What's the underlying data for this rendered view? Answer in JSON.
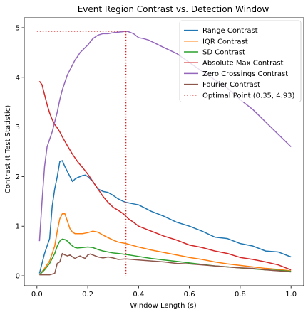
{
  "chart_data": {
    "type": "line",
    "title": "Event Region Contrast vs. Detection Window",
    "xlabel": "Window Length (s)",
    "ylabel": "Contrast (t Test Statistic)",
    "xlim": [
      -0.05,
      1.05
    ],
    "ylim": [
      -0.2,
      5.2
    ],
    "xticks": [
      0.0,
      0.2,
      0.4,
      0.6,
      0.8,
      1.0
    ],
    "xtick_labels": [
      "0.0",
      "0.2",
      "0.4",
      "0.6",
      "0.8",
      "1.0"
    ],
    "yticks": [
      0,
      1,
      2,
      3,
      4,
      5
    ],
    "ytick_labels": [
      "0",
      "1",
      "2",
      "3",
      "4",
      "5"
    ],
    "grid": false,
    "legend_position": "top-right",
    "series": [
      {
        "name": "Range Contrast",
        "color": "#1f77b4",
        "x": [
          0.01,
          0.02,
          0.03,
          0.04,
          0.05,
          0.06,
          0.07,
          0.08,
          0.09,
          0.1,
          0.11,
          0.12,
          0.13,
          0.14,
          0.15,
          0.16,
          0.17,
          0.18,
          0.19,
          0.2,
          0.22,
          0.24,
          0.26,
          0.28,
          0.3,
          0.32,
          0.34,
          0.35,
          0.36,
          0.38,
          0.4,
          0.45,
          0.5,
          0.55,
          0.6,
          0.65,
          0.7,
          0.75,
          0.8,
          0.85,
          0.9,
          0.95,
          1.0
        ],
        "y": [
          0.05,
          0.25,
          0.45,
          0.6,
          0.75,
          1.4,
          1.75,
          2.0,
          2.3,
          2.32,
          2.2,
          2.1,
          2.0,
          1.9,
          1.95,
          1.98,
          2.0,
          2.02,
          2.03,
          2.0,
          1.9,
          1.75,
          1.7,
          1.68,
          1.62,
          1.55,
          1.5,
          1.48,
          1.47,
          1.45,
          1.43,
          1.3,
          1.2,
          1.08,
          1.0,
          0.9,
          0.78,
          0.75,
          0.65,
          0.6,
          0.5,
          0.48,
          0.38
        ]
      },
      {
        "name": "IQR Contrast",
        "color": "#ff7f0e",
        "x": [
          0.01,
          0.03,
          0.05,
          0.07,
          0.08,
          0.09,
          0.1,
          0.11,
          0.12,
          0.13,
          0.14,
          0.15,
          0.16,
          0.18,
          0.2,
          0.22,
          0.24,
          0.26,
          0.28,
          0.3,
          0.32,
          0.35,
          0.4,
          0.45,
          0.5,
          0.55,
          0.6,
          0.65,
          0.7,
          0.75,
          0.8,
          0.85,
          0.9,
          0.95,
          1.0
        ],
        "y": [
          0.02,
          0.15,
          0.3,
          0.6,
          0.9,
          1.15,
          1.25,
          1.25,
          1.1,
          0.95,
          0.88,
          0.85,
          0.85,
          0.85,
          0.87,
          0.9,
          0.88,
          0.82,
          0.77,
          0.72,
          0.68,
          0.65,
          0.58,
          0.52,
          0.47,
          0.42,
          0.37,
          0.33,
          0.28,
          0.24,
          0.21,
          0.18,
          0.15,
          0.13,
          0.1
        ]
      },
      {
        "name": "SD Contrast",
        "color": "#2ca02c",
        "x": [
          0.01,
          0.03,
          0.05,
          0.07,
          0.08,
          0.09,
          0.1,
          0.11,
          0.12,
          0.13,
          0.14,
          0.15,
          0.16,
          0.18,
          0.2,
          0.22,
          0.24,
          0.26,
          0.28,
          0.3,
          0.32,
          0.35,
          0.4,
          0.45,
          0.5,
          0.55,
          0.6,
          0.65,
          0.7,
          0.75,
          0.8,
          0.85,
          0.9,
          0.95,
          1.0
        ],
        "y": [
          0.02,
          0.12,
          0.25,
          0.45,
          0.6,
          0.7,
          0.74,
          0.73,
          0.7,
          0.65,
          0.6,
          0.57,
          0.56,
          0.57,
          0.58,
          0.57,
          0.53,
          0.5,
          0.48,
          0.46,
          0.45,
          0.43,
          0.39,
          0.35,
          0.32,
          0.29,
          0.26,
          0.23,
          0.2,
          0.18,
          0.16,
          0.14,
          0.12,
          0.11,
          0.09
        ]
      },
      {
        "name": "Absolute Max Contrast",
        "color": "#d62728",
        "x": [
          0.01,
          0.02,
          0.03,
          0.04,
          0.05,
          0.06,
          0.07,
          0.08,
          0.09,
          0.1,
          0.12,
          0.14,
          0.16,
          0.18,
          0.2,
          0.22,
          0.24,
          0.26,
          0.28,
          0.3,
          0.32,
          0.34,
          0.35,
          0.36,
          0.38,
          0.4,
          0.45,
          0.5,
          0.55,
          0.6,
          0.65,
          0.7,
          0.75,
          0.8,
          0.85,
          0.9,
          0.95,
          1.0
        ],
        "y": [
          3.92,
          3.85,
          3.65,
          3.45,
          3.28,
          3.15,
          3.05,
          2.98,
          2.9,
          2.8,
          2.62,
          2.45,
          2.3,
          2.18,
          2.05,
          1.9,
          1.75,
          1.6,
          1.48,
          1.38,
          1.32,
          1.25,
          1.2,
          1.15,
          1.08,
          1.0,
          0.9,
          0.8,
          0.72,
          0.62,
          0.57,
          0.5,
          0.45,
          0.37,
          0.33,
          0.28,
          0.22,
          0.12
        ]
      },
      {
        "name": "Zero Crossings Contrast",
        "color": "#9467bd",
        "x": [
          0.01,
          0.02,
          0.03,
          0.04,
          0.05,
          0.06,
          0.07,
          0.08,
          0.09,
          0.1,
          0.11,
          0.12,
          0.13,
          0.14,
          0.15,
          0.16,
          0.17,
          0.18,
          0.19,
          0.2,
          0.22,
          0.24,
          0.26,
          0.28,
          0.3,
          0.32,
          0.34,
          0.35,
          0.36,
          0.38,
          0.4,
          0.42,
          0.44,
          0.46,
          0.5,
          0.55,
          0.6,
          0.65,
          0.7,
          0.75,
          0.8,
          0.85,
          0.9,
          0.95,
          1.0
        ],
        "y": [
          0.7,
          1.5,
          2.2,
          2.6,
          2.75,
          2.9,
          3.1,
          3.3,
          3.55,
          3.75,
          3.9,
          4.05,
          4.15,
          4.25,
          4.35,
          4.42,
          4.5,
          4.55,
          4.6,
          4.65,
          4.78,
          4.85,
          4.88,
          4.88,
          4.9,
          4.91,
          4.92,
          4.93,
          4.92,
          4.88,
          4.8,
          4.78,
          4.75,
          4.7,
          4.6,
          4.48,
          4.3,
          4.12,
          3.95,
          3.78,
          3.55,
          3.35,
          3.1,
          2.85,
          2.6
        ]
      },
      {
        "name": "Fourier Contrast",
        "color": "#8c564b",
        "x": [
          0.01,
          0.03,
          0.05,
          0.07,
          0.08,
          0.09,
          0.1,
          0.11,
          0.12,
          0.13,
          0.14,
          0.15,
          0.16,
          0.17,
          0.18,
          0.19,
          0.2,
          0.21,
          0.22,
          0.24,
          0.26,
          0.28,
          0.3,
          0.32,
          0.35,
          0.4,
          0.45,
          0.5,
          0.55,
          0.6,
          0.65,
          0.7,
          0.75,
          0.8,
          0.85,
          0.9,
          0.95,
          1.0
        ],
        "y": [
          0.02,
          0.02,
          0.02,
          0.05,
          0.25,
          0.28,
          0.45,
          0.42,
          0.4,
          0.42,
          0.38,
          0.35,
          0.38,
          0.4,
          0.37,
          0.35,
          0.42,
          0.44,
          0.42,
          0.38,
          0.36,
          0.38,
          0.36,
          0.33,
          0.34,
          0.32,
          0.3,
          0.28,
          0.25,
          0.24,
          0.22,
          0.2,
          0.18,
          0.16,
          0.15,
          0.12,
          0.1,
          0.08
        ]
      }
    ],
    "optimal_point": {
      "name": "Optimal Point (0.35, 4.93)",
      "color": "#d62728",
      "x": 0.35,
      "y": 4.93
    }
  }
}
